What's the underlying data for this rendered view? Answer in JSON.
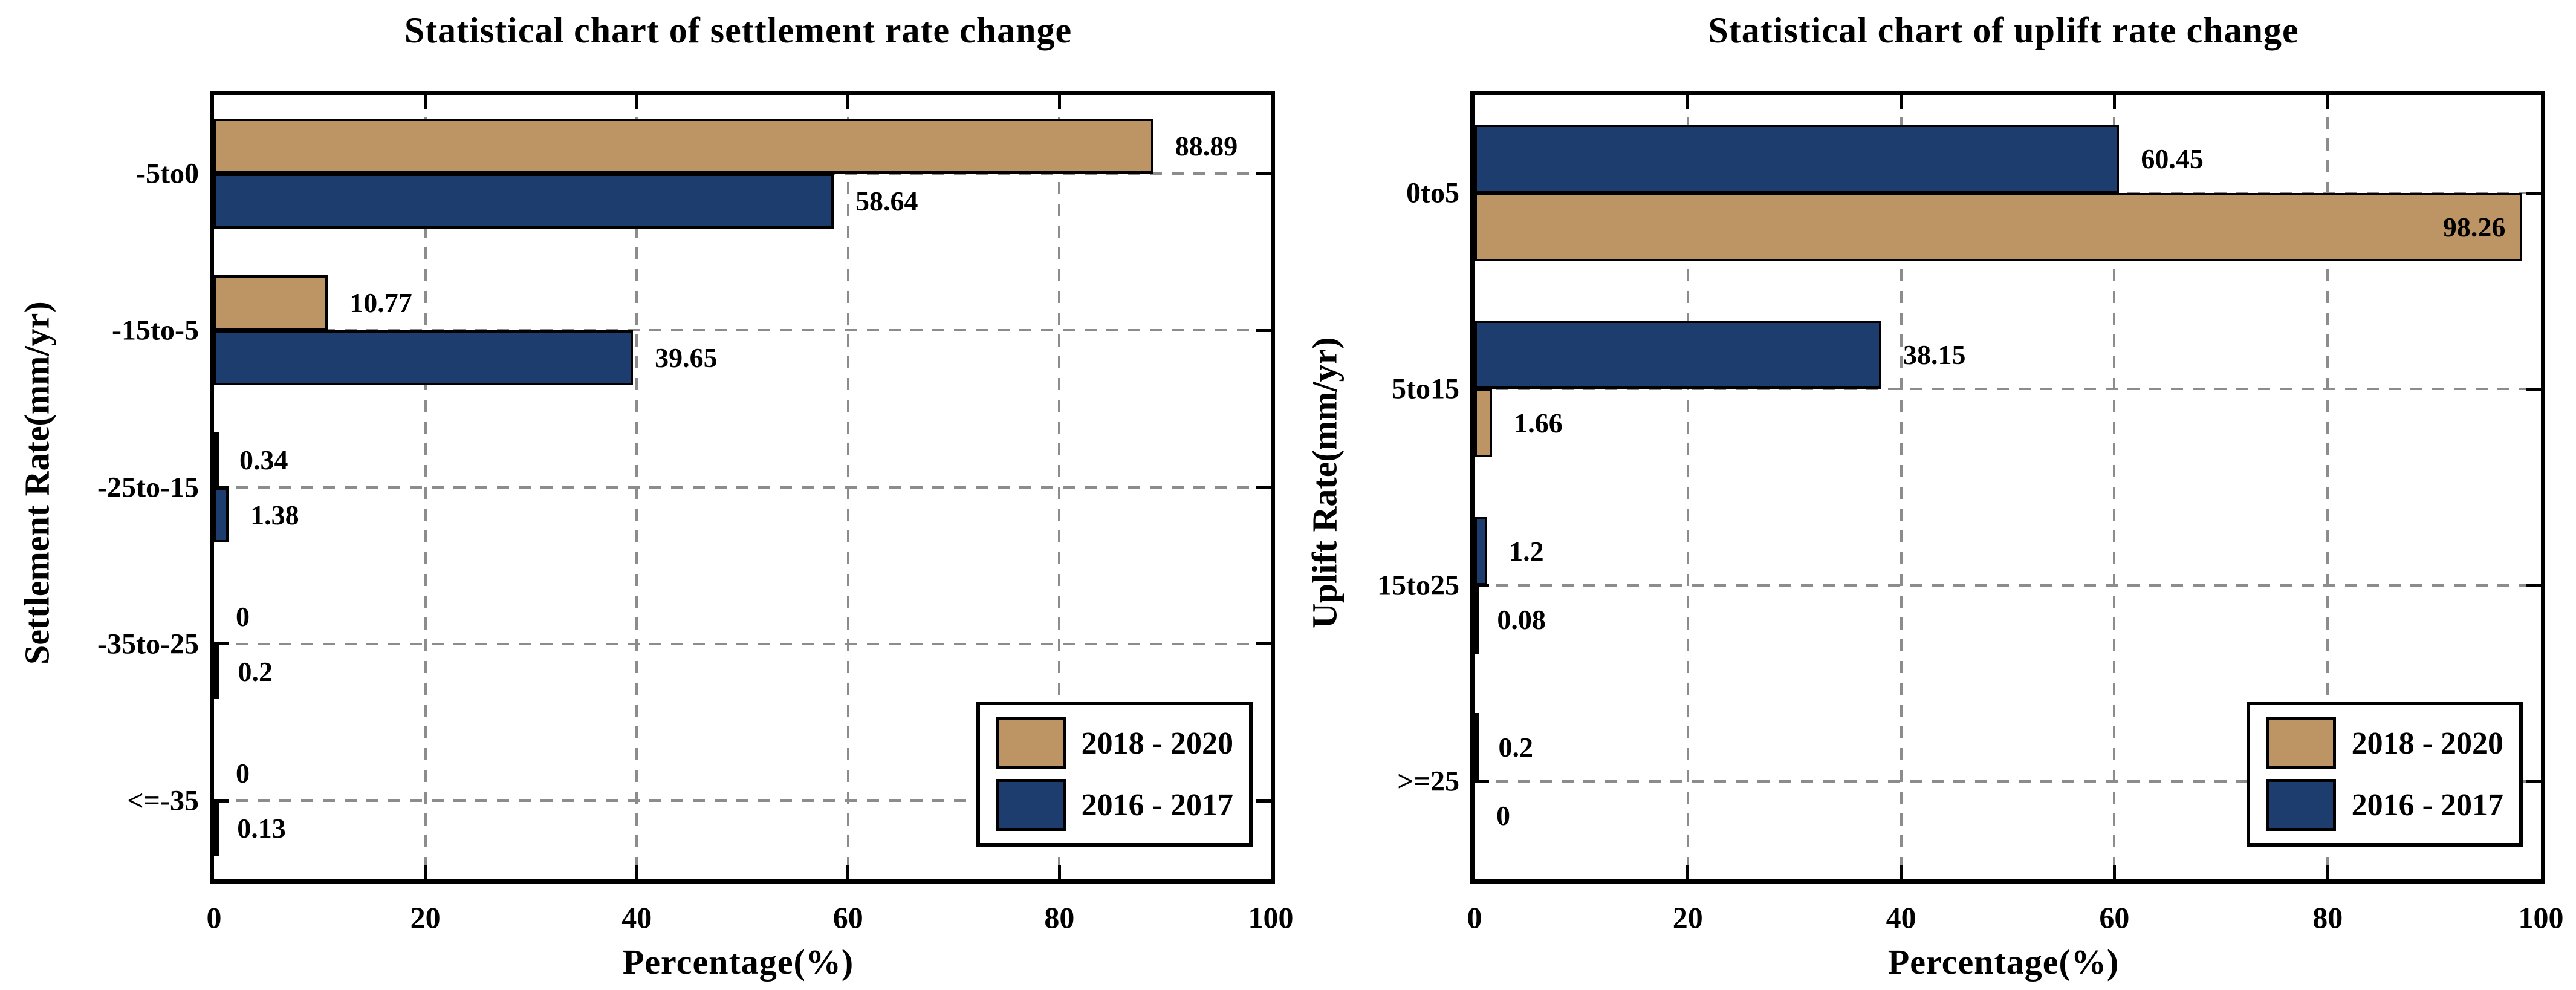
{
  "chart_data": [
    {
      "type": "bar",
      "orientation": "horizontal",
      "title": "Statistical chart of settlement rate change",
      "xlabel": "Percentage(%)",
      "ylabel": "Settlement Rate(mm/yr)",
      "xlim": [
        0,
        100
      ],
      "xticks": [
        0,
        20,
        40,
        60,
        80,
        100
      ],
      "grid": "dashed",
      "legend_position": "lower right",
      "categories": [
        "-5to0",
        "-15to-5",
        "-25to-15",
        "-35to-25",
        "<=-35"
      ],
      "series": [
        {
          "name": "2018 - 2020",
          "color": "#BD9463",
          "values": [
            88.89,
            10.77,
            0.34,
            0,
            0
          ]
        },
        {
          "name": "2016 - 2017",
          "color": "#1C3D6E",
          "values": [
            58.64,
            39.65,
            1.38,
            0.2,
            0.13
          ]
        }
      ],
      "group_row_order": [
        0,
        1
      ]
    },
    {
      "type": "bar",
      "orientation": "horizontal",
      "title": "Statistical chart of uplift rate change",
      "xlabel": "Percentage(%)",
      "ylabel": "Uplift Rate(mm/yr)",
      "xlim": [
        0,
        100
      ],
      "xticks": [
        0,
        20,
        40,
        60,
        80,
        100
      ],
      "grid": "dashed",
      "legend_position": "lower right",
      "categories": [
        "0to5",
        "5to15",
        "15to25",
        ">=25"
      ],
      "series": [
        {
          "name": "2018 - 2020",
          "color": "#BD9463",
          "values": [
            98.26,
            1.66,
            0.08,
            0
          ]
        },
        {
          "name": "2016 - 2017",
          "color": "#1C3D6E",
          "values": [
            60.45,
            38.15,
            1.2,
            0.2
          ]
        }
      ],
      "group_row_order": [
        1,
        0
      ]
    }
  ]
}
